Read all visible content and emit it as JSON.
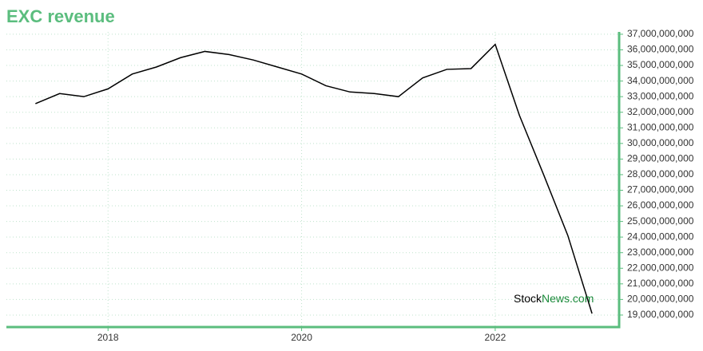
{
  "chart_data": {
    "type": "line",
    "title": "EXC revenue",
    "x": [
      2017.25,
      2017.5,
      2017.75,
      2018.0,
      2018.25,
      2018.5,
      2018.75,
      2019.0,
      2019.25,
      2019.5,
      2019.75,
      2020.0,
      2020.25,
      2020.5,
      2020.75,
      2021.0,
      2021.25,
      2021.5,
      2021.75,
      2022.0,
      2022.25,
      2022.5,
      2022.75,
      2023.0
    ],
    "series": [
      {
        "name": "EXC revenue",
        "color": "#000000",
        "values": [
          32550000000,
          33200000000,
          33000000000,
          33500000000,
          34450000000,
          34900000000,
          35500000000,
          35900000000,
          35700000000,
          35350000000,
          34900000000,
          34450000000,
          33700000000,
          33300000000,
          33200000000,
          33000000000,
          34200000000,
          34750000000,
          34800000000,
          36350000000,
          31800000000,
          28000000000,
          24100000000,
          19100000000
        ]
      }
    ],
    "xlim": [
      2016.95,
      2023.28
    ],
    "xticks": [
      2018,
      2020,
      2022
    ],
    "ylim": [
      18230000000,
      37150000000
    ],
    "yticks": [
      {
        "value": 19000000000,
        "label": "19,000,000,000"
      },
      {
        "value": 20000000000,
        "label": "20,000,000,000"
      },
      {
        "value": 21000000000,
        "label": "21,000,000,000"
      },
      {
        "value": 22000000000,
        "label": "22,000,000,000"
      },
      {
        "value": 23000000000,
        "label": "23,000,000,000"
      },
      {
        "value": 24000000000,
        "label": "24,000,000,000"
      },
      {
        "value": 25000000000,
        "label": "25,000,000,000"
      },
      {
        "value": 26000000000,
        "label": "26,000,000,000"
      },
      {
        "value": 27000000000,
        "label": "27,000,000,000"
      },
      {
        "value": 28000000000,
        "label": "28,000,000,000"
      },
      {
        "value": 29000000000,
        "label": "29,000,000,000"
      },
      {
        "value": 30000000000,
        "label": "30,000,000,000"
      },
      {
        "value": 31000000000,
        "label": "31,000,000,000"
      },
      {
        "value": 32000000000,
        "label": "32,000,000,000"
      },
      {
        "value": 33000000000,
        "label": "33,000,000,000"
      },
      {
        "value": 34000000000,
        "label": "34,000,000,000"
      },
      {
        "value": 35000000000,
        "label": "35,000,000,000"
      },
      {
        "value": 36000000000,
        "label": "36,000,000,000"
      },
      {
        "value": 37000000000,
        "label": "37,000,000,000"
      }
    ],
    "grid": true,
    "watermark": {
      "first": "Stock",
      "second": "News.com"
    }
  }
}
